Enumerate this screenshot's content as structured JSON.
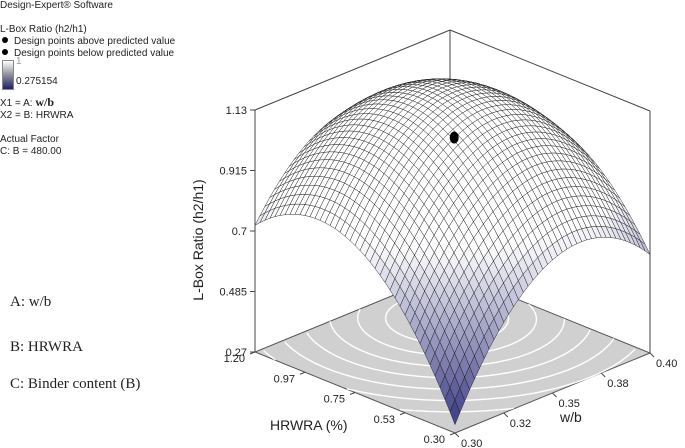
{
  "software": "Design-Expert® Software",
  "legend": {
    "response": "L-Box Ratio (h2/h1)",
    "above": "Design points above predicted value",
    "below": "Design points below predicted value",
    "scale_max": "1",
    "scale_min": "0.275154"
  },
  "factors": {
    "x1_prefix": "X1 = A:",
    "x1_name": "w/b",
    "x2": "X2 = B: HRWRA",
    "actual_title": "Actual Factor",
    "actual_value": "C: B = 480.00"
  },
  "factor_notes": [
    "A: w/b",
    "B: HRWRA",
    "C: Binder content (B)"
  ],
  "colors": {
    "surface_low": "#2a2a7a",
    "surface_high": "#ffffff",
    "floor": "#d0d0d0",
    "contours": "#ffffff"
  },
  "chart_data": {
    "type": "surface3d",
    "zlabel": "L-Box Ratio (h2/h1)",
    "xlabel": "w/b",
    "ylabel": "HRWRA (%)",
    "z_ticks": [
      "0.27",
      "0.485",
      "0.7",
      "0.915",
      "1.13"
    ],
    "zlim": [
      0.27,
      1.13
    ],
    "x_ticks": [
      "0.30",
      "0.32",
      "0.35",
      "0.38",
      "0.40"
    ],
    "xlim": [
      0.3,
      0.4
    ],
    "y_ticks": [
      "0.30",
      "0.53",
      "0.75",
      "0.97",
      "1.20"
    ],
    "ylim": [
      0.3,
      1.2
    ],
    "corner_values": {
      "wb_0.30_hrwra_0.30": 0.3,
      "wb_0.40_hrwra_0.30": 0.62,
      "wb_0.30_hrwra_1.20": 0.72,
      "wb_0.40_hrwra_1.20": 0.7
    },
    "peak": {
      "w/b": 0.37,
      "HRWRA": 0.95,
      "z": 1.12
    },
    "design_point": {
      "w/b": 0.36,
      "HRWRA": 0.83,
      "z": 0.98,
      "type": "above"
    }
  }
}
